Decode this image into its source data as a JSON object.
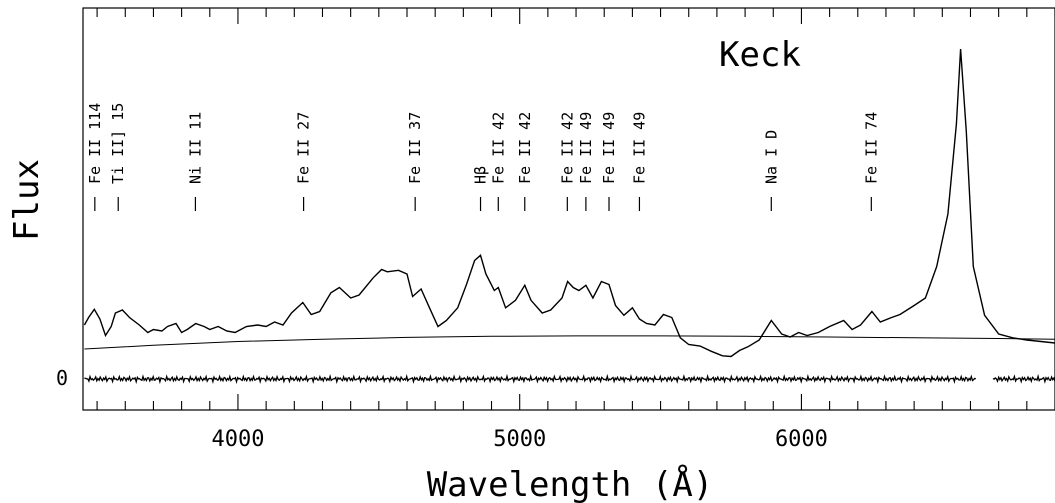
{
  "chart_data": {
    "type": "line",
    "title": "Keck",
    "xlabel": "Wavelength (Å)",
    "ylabel": "Flux",
    "xlim": [
      3450,
      6900
    ],
    "x_ticks": [
      4000,
      5000,
      6000
    ],
    "x_tick_labels": [
      "4000",
      "5000",
      "6000"
    ],
    "y_zero_label": "0",
    "grid": false,
    "line_ids": [
      {
        "label": "Fe II 114",
        "x": 3492
      },
      {
        "label": "Ti II] 15",
        "x": 3575
      },
      {
        "label": "Ni II 11",
        "x": 3849
      },
      {
        "label": "Fe II 27",
        "x": 4233
      },
      {
        "label": "Fe II 37",
        "x": 4629
      },
      {
        "label": "Hβ",
        "x": 4861
      },
      {
        "label": "Fe II 42",
        "x": 4924
      },
      {
        "label": "Fe II 42",
        "x": 5018
      },
      {
        "label": "Fe II 42",
        "x": 5169
      },
      {
        "label": "Fe II 49",
        "x": 5235
      },
      {
        "label": "Fe II 49",
        "x": 5317
      },
      {
        "label": "Fe II 49",
        "x": 5425
      },
      {
        "label": "Na I D",
        "x": 5893
      },
      {
        "label": "Fe II 74",
        "x": 6248
      }
    ],
    "series": [
      {
        "role": "spectrum",
        "x": [
          3455,
          3470,
          3490,
          3510,
          3530,
          3550,
          3565,
          3590,
          3615,
          3650,
          3680,
          3700,
          3730,
          3750,
          3780,
          3800,
          3820,
          3850,
          3880,
          3900,
          3930,
          3960,
          3990,
          4030,
          4070,
          4100,
          4130,
          4160,
          4190,
          4230,
          4260,
          4290,
          4330,
          4360,
          4400,
          4430,
          4480,
          4510,
          4530,
          4570,
          4600,
          4620,
          4650,
          4680,
          4710,
          4740,
          4780,
          4810,
          4840,
          4861,
          4880,
          4910,
          4924,
          4950,
          4985,
          5018,
          5040,
          5080,
          5110,
          5150,
          5170,
          5190,
          5210,
          5235,
          5260,
          5290,
          5317,
          5340,
          5370,
          5400,
          5425,
          5450,
          5480,
          5510,
          5540,
          5570,
          5600,
          5640,
          5680,
          5720,
          5750,
          5780,
          5810,
          5850,
          5893,
          5930,
          5960,
          5990,
          6020,
          6060,
          6100,
          6150,
          6180,
          6210,
          6250,
          6280,
          6320,
          6350,
          6400,
          6440,
          6480,
          6520,
          6550,
          6565,
          6585,
          6610,
          6650,
          6700,
          6750,
          6800,
          6850,
          6900
        ],
        "y": [
          0.72,
          0.82,
          0.93,
          0.8,
          0.58,
          0.7,
          0.88,
          0.92,
          0.82,
          0.72,
          0.62,
          0.66,
          0.64,
          0.7,
          0.74,
          0.62,
          0.66,
          0.74,
          0.7,
          0.66,
          0.7,
          0.64,
          0.62,
          0.7,
          0.72,
          0.7,
          0.76,
          0.72,
          0.88,
          1.02,
          0.86,
          0.9,
          1.15,
          1.22,
          1.08,
          1.12,
          1.35,
          1.46,
          1.43,
          1.45,
          1.4,
          1.1,
          1.2,
          0.95,
          0.7,
          0.78,
          0.95,
          1.25,
          1.58,
          1.65,
          1.4,
          1.18,
          1.22,
          0.95,
          1.05,
          1.25,
          1.05,
          0.88,
          0.92,
          1.08,
          1.3,
          1.22,
          1.18,
          1.25,
          1.08,
          1.3,
          1.26,
          0.98,
          0.85,
          0.95,
          0.8,
          0.74,
          0.72,
          0.86,
          0.82,
          0.55,
          0.46,
          0.44,
          0.37,
          0.31,
          0.3,
          0.38,
          0.43,
          0.52,
          0.78,
          0.6,
          0.56,
          0.62,
          0.58,
          0.62,
          0.7,
          0.78,
          0.66,
          0.72,
          0.9,
          0.76,
          0.82,
          0.86,
          0.98,
          1.08,
          1.5,
          2.2,
          3.4,
          4.4,
          3.3,
          1.5,
          0.85,
          0.6,
          0.55,
          0.52,
          0.5,
          0.48
        ]
      },
      {
        "role": "continuum",
        "x": [
          3455,
          3700,
          4000,
          4300,
          4600,
          4900,
          5200,
          5500,
          5800,
          6100,
          6400,
          6700,
          6900
        ],
        "y": [
          0.4,
          0.45,
          0.5,
          0.53,
          0.555,
          0.57,
          0.575,
          0.575,
          0.57,
          0.56,
          0.55,
          0.54,
          0.53
        ]
      },
      {
        "role": "residual",
        "x": [
          3455,
          6620,
          6680,
          6900
        ],
        "y": [
          0,
          0,
          0,
          0
        ]
      }
    ]
  }
}
